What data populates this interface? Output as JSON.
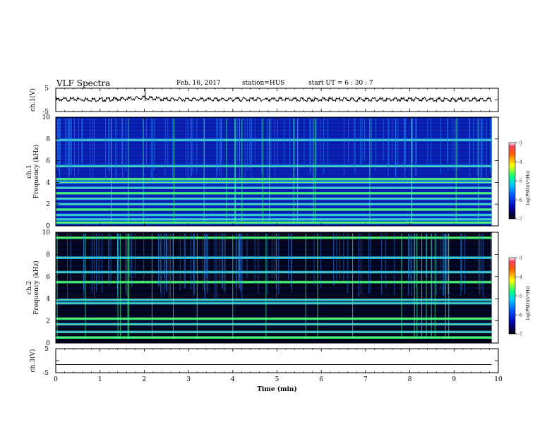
{
  "header": {
    "title": "VLF Spectra",
    "date": "Feb. 16, 2017",
    "station": "station=HUS",
    "start": "start  UT  =   6  : 30 : 7"
  },
  "chart_data": [
    {
      "type": "line",
      "name": "ch1-waveform",
      "ylabel": "ch.1(V)",
      "ylim": [
        -5,
        5
      ],
      "yticks": [
        "5",
        "-5"
      ],
      "xlim": [
        0,
        10
      ],
      "x": [
        0,
        0.5,
        1,
        1.5,
        2,
        2.5,
        3,
        3.5,
        4,
        4.5,
        5,
        5.5,
        6,
        6.5,
        7,
        7.5,
        8,
        8.5,
        9,
        9.5,
        9.85
      ],
      "values": [
        0.2,
        0.3,
        0.1,
        0.4,
        0.9,
        0.2,
        0.3,
        0.1,
        0.2,
        0.3,
        0.2,
        0.1,
        0.3,
        0.2,
        0.2,
        0.1,
        0.3,
        0.2,
        0.1,
        0.2,
        0.2
      ]
    },
    {
      "type": "heatmap",
      "name": "ch1-spectrogram",
      "ylabel_top": "ch.1",
      "ylabel": "Frequency  (kHz)",
      "ylim": [
        0,
        10
      ],
      "yticks": [
        "0",
        "2",
        "4",
        "6",
        "8",
        "10"
      ],
      "xlim": [
        0,
        9.85
      ],
      "bands_khz": [
        0.3,
        0.6,
        1.0,
        1.5,
        2.0,
        2.5,
        3.0,
        3.5,
        4.0,
        4.3,
        5.5,
        7.9
      ],
      "colorbar": {
        "label": "log(PSD)(V²/Hz)",
        "range": [
          -7,
          -3
        ],
        "ticks": [
          "-3",
          "-4",
          "-5",
          "-6",
          "-7"
        ]
      }
    },
    {
      "type": "heatmap",
      "name": "ch2-spectrogram",
      "ylabel_top": "ch.2",
      "ylabel": "Frequency  (kHz)",
      "ylim": [
        0,
        10
      ],
      "yticks": [
        "0",
        "2",
        "4",
        "6",
        "8",
        "10"
      ],
      "xlim": [
        0,
        9.85
      ],
      "bands_khz": [
        0.5,
        1.0,
        1.7,
        2.2,
        3.6,
        3.9,
        5.5,
        6.4,
        7.7,
        9.5
      ],
      "colorbar": {
        "label": "log(PSD)(V²/Hz)",
        "range": [
          -7,
          -3
        ],
        "ticks": [
          "-3",
          "-4",
          "-5",
          "-6",
          "-7"
        ]
      }
    },
    {
      "type": "line",
      "name": "ch3-waveform",
      "ylabel": "ch.3(V)",
      "ylim": [
        -5,
        5
      ],
      "yticks": [
        "5",
        "-5"
      ],
      "xlim": [
        0,
        10
      ],
      "x": [
        0,
        9.85
      ],
      "values": [
        -1.6,
        -1.6
      ],
      "xlabel": "Time  (min)",
      "xticks": [
        "0",
        "1",
        "2",
        "3",
        "4",
        "5",
        "6",
        "7",
        "8",
        "9",
        "10"
      ]
    }
  ]
}
